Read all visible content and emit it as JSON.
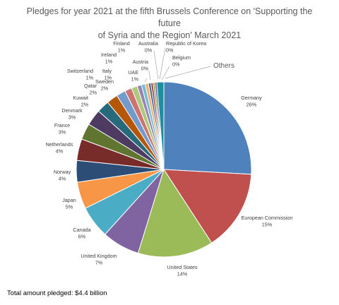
{
  "chart_data": {
    "type": "pie",
    "title_line1": "Pledges for year 2021 at the fifth Brussels Conference on 'Supporting the future",
    "title_line2": "of Syria and the Region' March 2021",
    "slices": [
      {
        "name": "Germany",
        "pct": "26%",
        "value": 26,
        "color": "#4f81bd"
      },
      {
        "name": "European Commission",
        "pct": "15%",
        "value": 15,
        "color": "#c0504d"
      },
      {
        "name": "United States",
        "pct": "14%",
        "value": 14,
        "color": "#9bbb59"
      },
      {
        "name": "United Kingdom",
        "pct": "7%",
        "value": 7,
        "color": "#8064a2"
      },
      {
        "name": "Canada",
        "pct": "6%",
        "value": 6,
        "color": "#4bacc6"
      },
      {
        "name": "Japan",
        "pct": "5%",
        "value": 5,
        "color": "#f79646"
      },
      {
        "name": "Norway",
        "pct": "4%",
        "value": 4,
        "color": "#2c4d75"
      },
      {
        "name": "Netherlands",
        "pct": "4%",
        "value": 4,
        "color": "#772c2a"
      },
      {
        "name": "France",
        "pct": "3%",
        "value": 3,
        "color": "#5f7530"
      },
      {
        "name": "Denmark",
        "pct": "3%",
        "value": 3,
        "color": "#4d3b62"
      },
      {
        "name": "Kuwait",
        "pct": "2%",
        "value": 2.3,
        "color": "#276a7c"
      },
      {
        "name": "Qatar",
        "pct": "2%",
        "value": 2.1,
        "color": "#b65708"
      },
      {
        "name": "Sweden",
        "pct": "2%",
        "value": 1.7,
        "color": "#729aca"
      },
      {
        "name": "Switzerland",
        "pct": "1%",
        "value": 1.3,
        "color": "#cd7371"
      },
      {
        "name": "Italy",
        "pct": "1%",
        "value": 1.1,
        "color": "#afc97a"
      },
      {
        "name": "Ireland",
        "pct": "1%",
        "value": 0.8,
        "color": "#9983b5"
      },
      {
        "name": "Finland",
        "pct": "1%",
        "value": 0.7,
        "color": "#6fbdd1"
      },
      {
        "name": "UAE",
        "pct": "1%",
        "value": 0.6,
        "color": "#f9ab6b"
      },
      {
        "name": "Austria",
        "pct": "0%",
        "value": 0.45,
        "color": "#3a679c"
      },
      {
        "name": "Australia",
        "pct": "0%",
        "value": 0.4,
        "color": "#9e3b38"
      },
      {
        "name": "Republic of Korea",
        "pct": "0%",
        "value": 0.35,
        "color": "#7e9c40"
      },
      {
        "name": "Belgium",
        "pct": "0%",
        "value": 0.35,
        "color": "#664f83"
      },
      {
        "name": "Others",
        "pct": "",
        "value": 1.3,
        "color": "#1f8fa0"
      }
    ]
  },
  "footnote": "Total amount pledged: $4.4 billion"
}
